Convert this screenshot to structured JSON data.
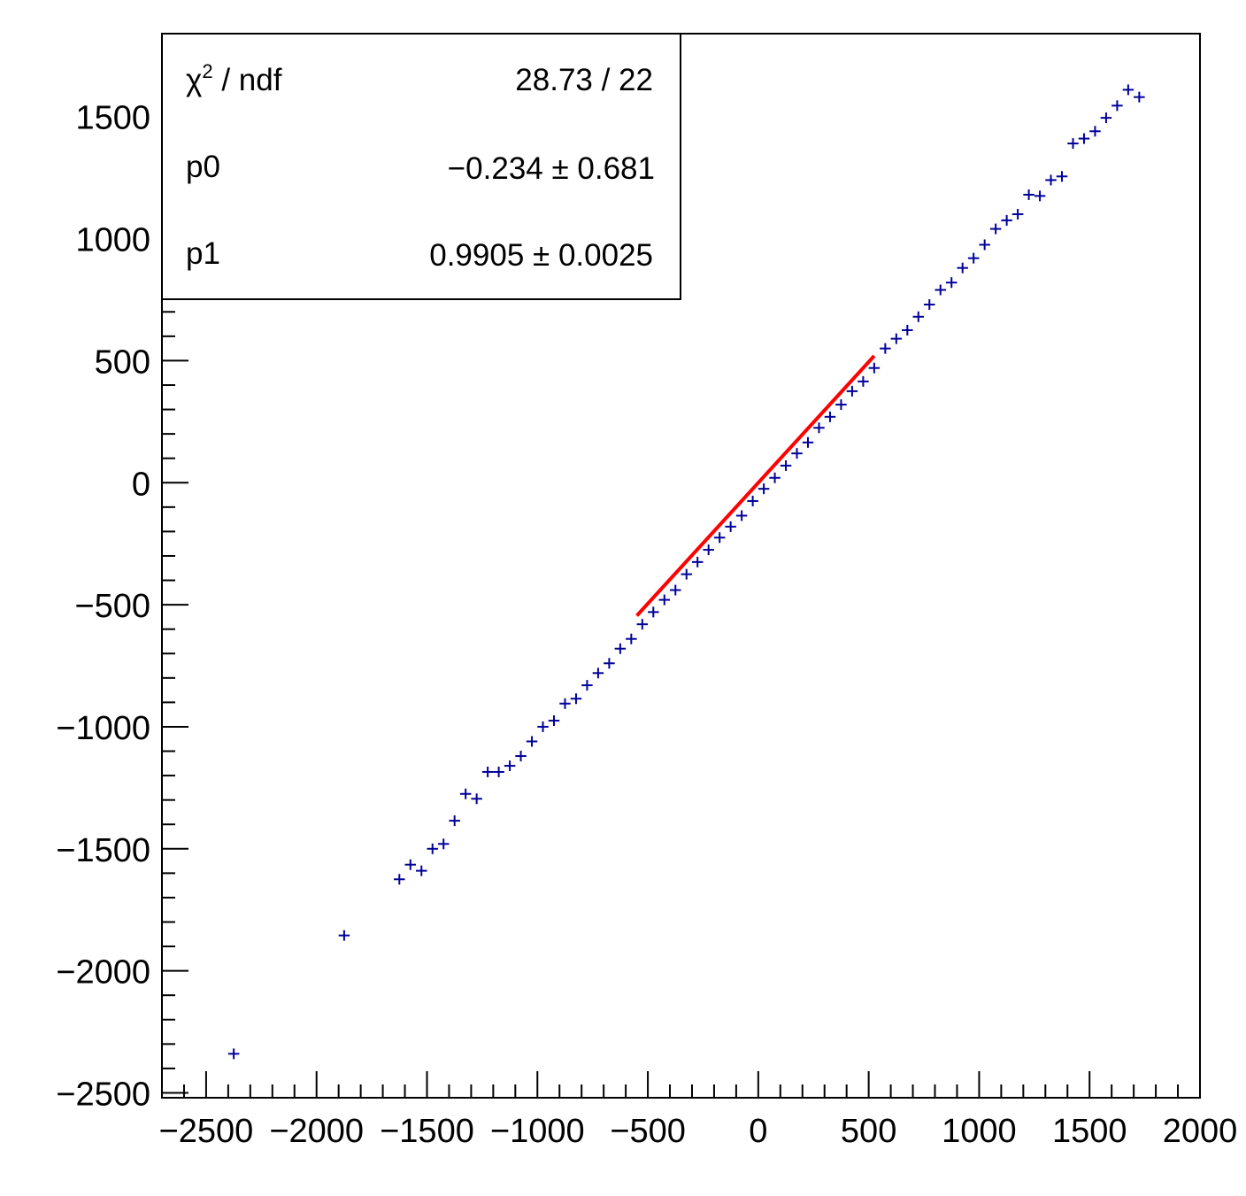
{
  "chart_data": {
    "type": "scatter",
    "title": "",
    "xlabel": "",
    "ylabel": "",
    "xlim": [
      -2700,
      2000
    ],
    "ylim": [
      -2520,
      1840
    ],
    "x_ticks": [
      -2500,
      -2000,
      -1500,
      -1000,
      -500,
      0,
      500,
      1000,
      1500,
      2000
    ],
    "x_tick_labels": [
      "−2500",
      "−2000",
      "−1500",
      "−1000",
      "−500",
      "0",
      "500",
      "1000",
      "1500",
      "2000"
    ],
    "y_ticks": [
      -2500,
      -2000,
      -1500,
      -1000,
      -500,
      0,
      500,
      1000,
      1500
    ],
    "y_tick_labels": [
      "−2500",
      "−2000",
      "−1500",
      "−1000",
      "−500",
      "0",
      "500",
      "1000",
      "1500"
    ],
    "bin_width": 50,
    "series": [
      {
        "style": "crosses",
        "color": "#000099",
        "points": [
          [
            -2375,
            -2340
          ],
          [
            -1875,
            -1855
          ],
          [
            -1625,
            -1625
          ],
          [
            -1575,
            -1565
          ],
          [
            -1525,
            -1590
          ],
          [
            -1475,
            -1500
          ],
          [
            -1425,
            -1480
          ],
          [
            -1375,
            -1385
          ],
          [
            -1325,
            -1275
          ],
          [
            -1275,
            -1295
          ],
          [
            -1225,
            -1185
          ],
          [
            -1175,
            -1185
          ],
          [
            -1125,
            -1160
          ],
          [
            -1075,
            -1120
          ],
          [
            -1025,
            -1060
          ],
          [
            -975,
            -1000
          ],
          [
            -925,
            -975
          ],
          [
            -875,
            -905
          ],
          [
            -825,
            -885
          ],
          [
            -775,
            -830
          ],
          [
            -725,
            -780
          ],
          [
            -675,
            -740
          ],
          [
            -625,
            -680
          ],
          [
            -575,
            -640
          ],
          [
            -525,
            -580
          ],
          [
            -475,
            -530
          ],
          [
            -425,
            -480
          ],
          [
            -375,
            -440
          ],
          [
            -325,
            -375
          ],
          [
            -275,
            -325
          ],
          [
            -225,
            -275
          ],
          [
            -175,
            -225
          ],
          [
            -125,
            -180
          ],
          [
            -75,
            -135
          ],
          [
            -25,
            -75
          ],
          [
            25,
            -25
          ],
          [
            75,
            20
          ],
          [
            125,
            70
          ],
          [
            175,
            120
          ],
          [
            225,
            165
          ],
          [
            275,
            225
          ],
          [
            325,
            270
          ],
          [
            375,
            320
          ],
          [
            425,
            375
          ],
          [
            475,
            415
          ],
          [
            525,
            470
          ],
          [
            575,
            550
          ],
          [
            625,
            590
          ],
          [
            675,
            625
          ],
          [
            725,
            680
          ],
          [
            775,
            730
          ],
          [
            825,
            790
          ],
          [
            875,
            820
          ],
          [
            925,
            880
          ],
          [
            975,
            920
          ],
          [
            1025,
            975
          ],
          [
            1075,
            1040
          ],
          [
            1125,
            1075
          ],
          [
            1175,
            1100
          ],
          [
            1225,
            1180
          ],
          [
            1275,
            1175
          ],
          [
            1325,
            1240
          ],
          [
            1375,
            1255
          ],
          [
            1425,
            1390
          ],
          [
            1475,
            1410
          ],
          [
            1525,
            1440
          ],
          [
            1575,
            1495
          ],
          [
            1625,
            1545
          ],
          [
            1675,
            1610
          ],
          [
            1725,
            1580
          ]
        ]
      }
    ],
    "fit": {
      "color": "#ff0000",
      "x_range": [
        -550,
        525
      ],
      "p0": -0.234,
      "p1": 0.9905
    },
    "stats_box": {
      "rows": [
        {
          "label_main": "χ",
          "label_sup": "2",
          "label_rest": " / ndf",
          "value": "28.73 / 22"
        },
        {
          "label_main": "p0",
          "label_sup": "",
          "label_rest": "",
          "value": "−0.234 ± 0.681"
        },
        {
          "label_main": "p1",
          "label_sup": "",
          "label_rest": "",
          "value": "0.9905 ± 0.0025"
        }
      ]
    }
  }
}
